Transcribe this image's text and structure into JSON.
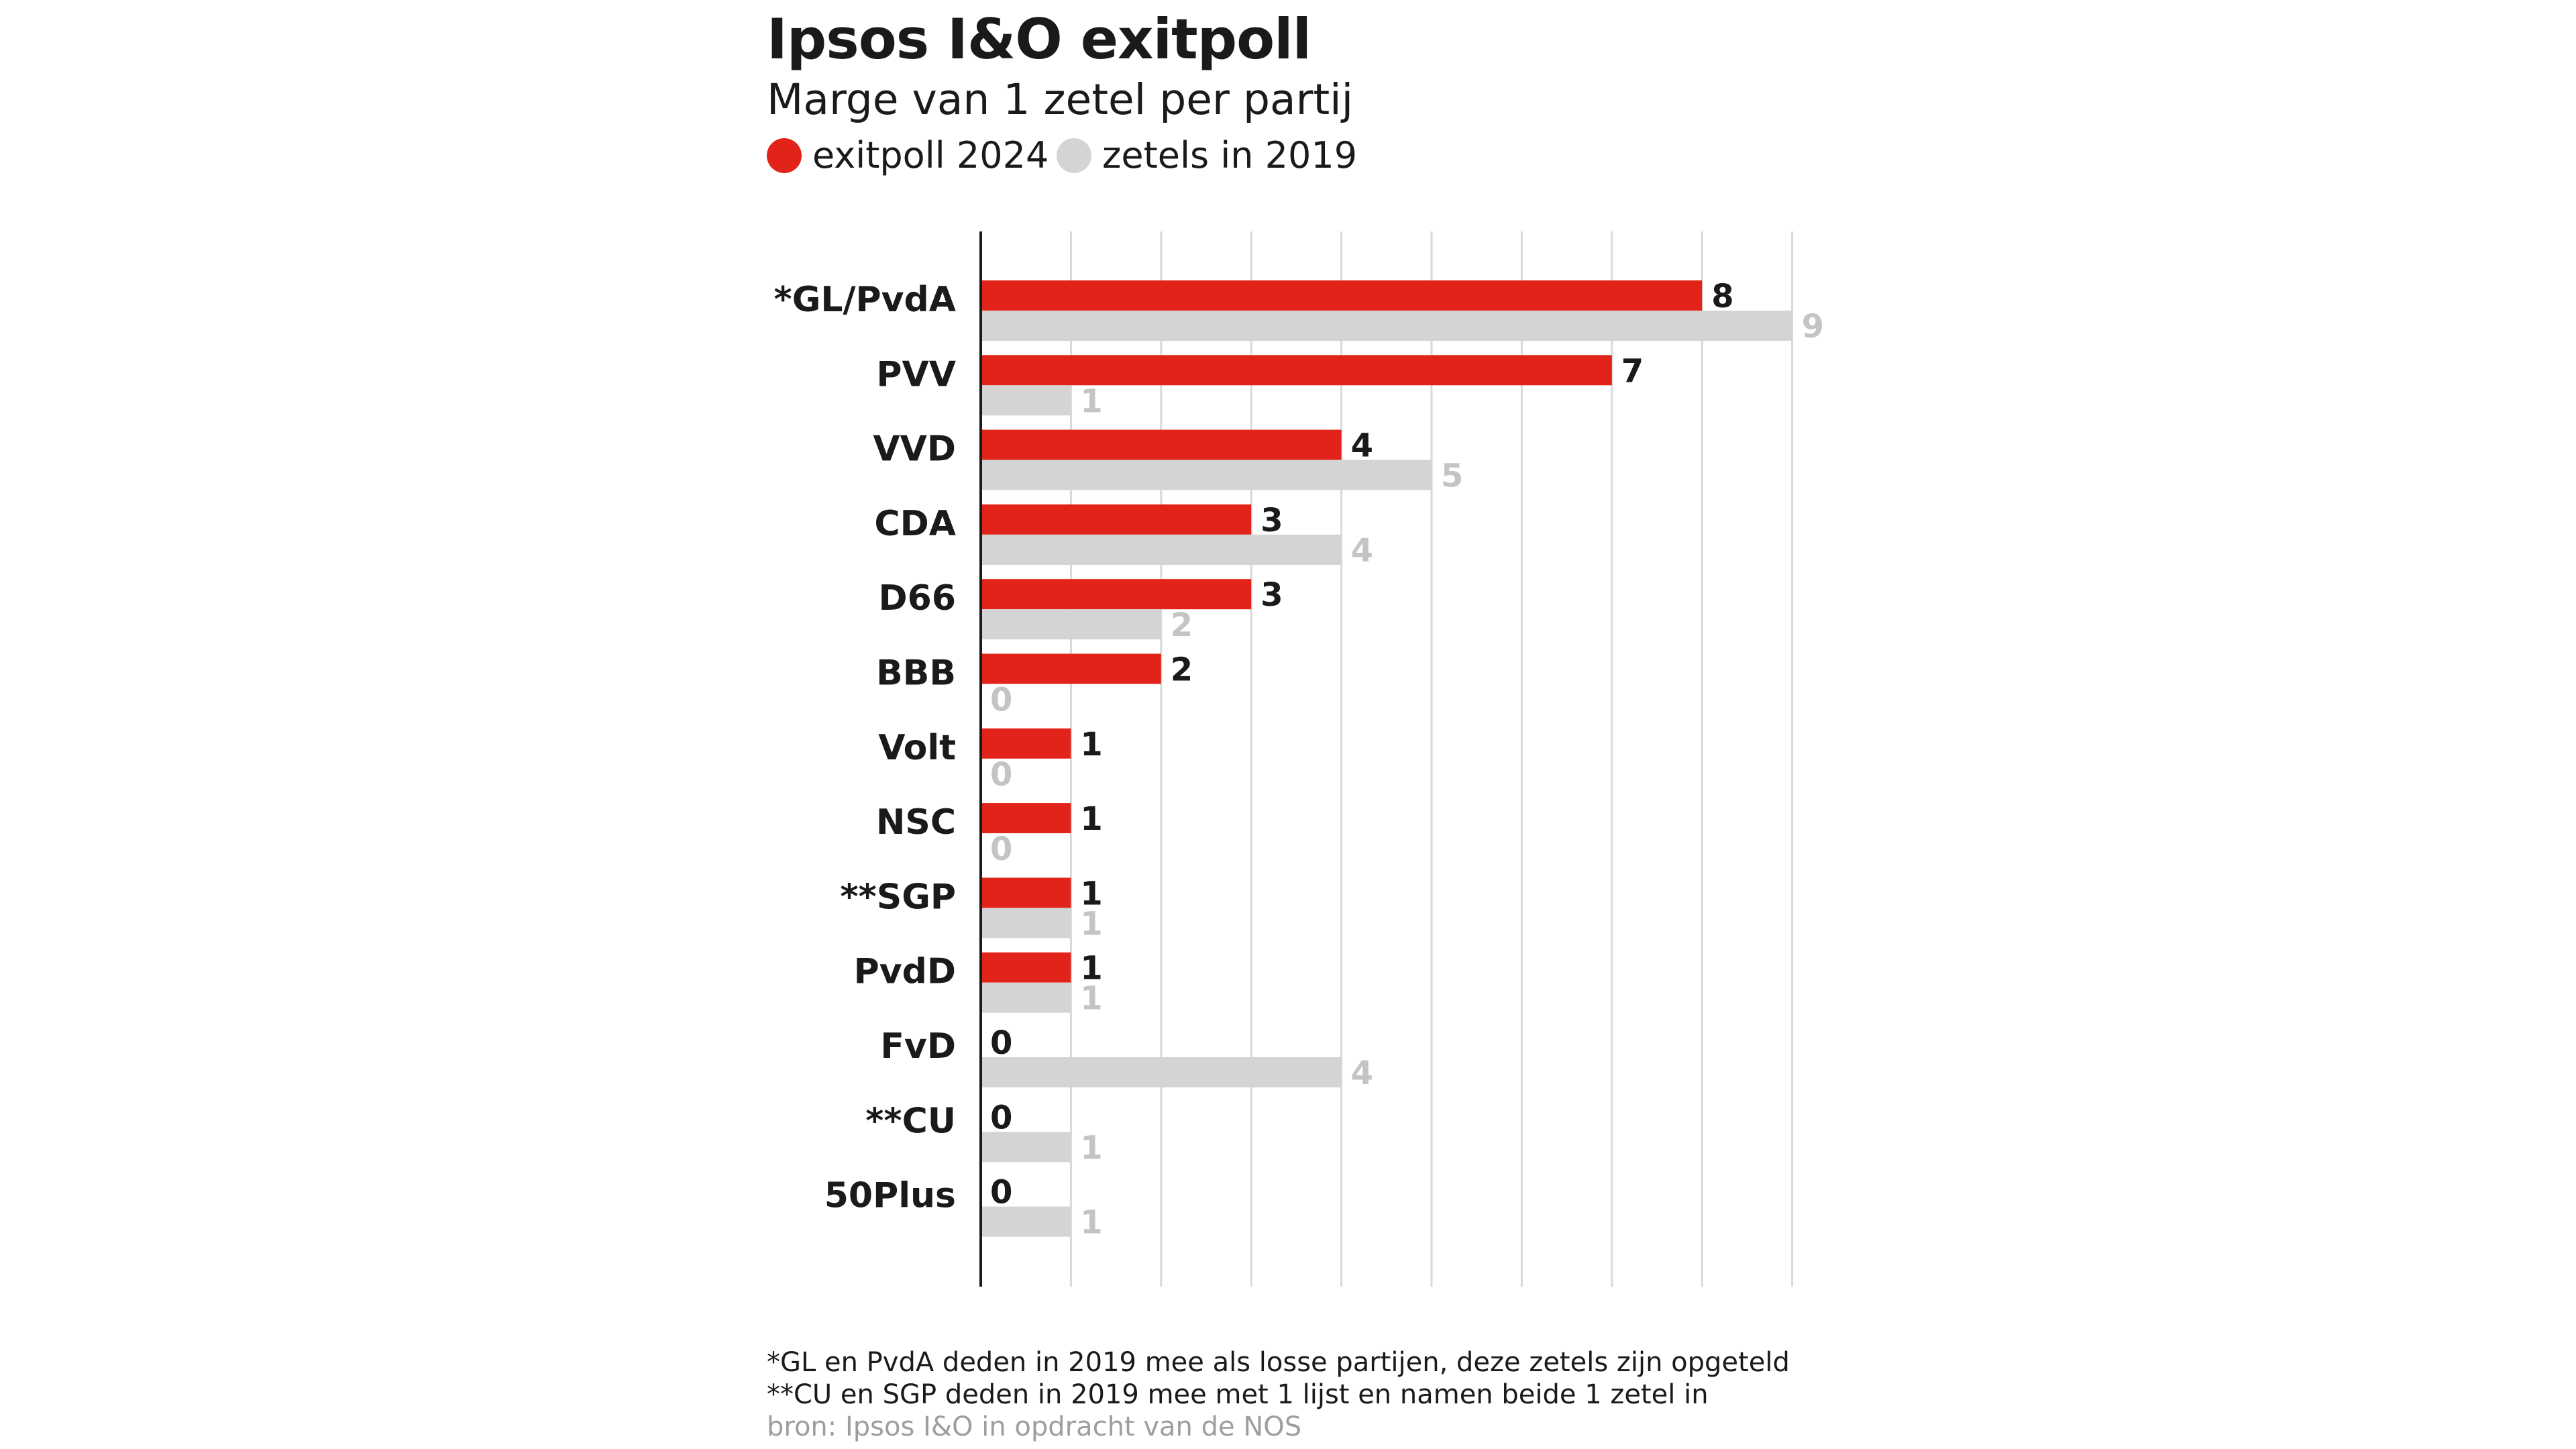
{
  "title": "Ipsos I&O exitpoll",
  "subtitle": "Marge van 1 zetel per partij",
  "colors": {
    "series_2024": "#e2231a",
    "series_2019": "#d4d4d4",
    "grid": "#d9d9d9",
    "axis": "#1a1a1a"
  },
  "legend": [
    {
      "label": "exitpoll 2024",
      "color": "#e2231a"
    },
    {
      "label": "zetels in 2019",
      "color": "#d4d4d4"
    }
  ],
  "chart_data": {
    "type": "bar",
    "orientation": "horizontal",
    "categories": [
      "*GL/PvdA",
      "PVV",
      "VVD",
      "CDA",
      "D66",
      "BBB",
      "Volt",
      "NSC",
      "**SGP",
      "PvdD",
      "FvD",
      "**CU",
      "50Plus"
    ],
    "series": [
      {
        "name": "exitpoll 2024",
        "values": [
          8,
          7,
          4,
          3,
          3,
          2,
          1,
          1,
          1,
          1,
          0,
          0,
          0
        ]
      },
      {
        "name": "zetels in 2019",
        "values": [
          9,
          1,
          5,
          4,
          2,
          0,
          0,
          0,
          1,
          1,
          4,
          1,
          1
        ]
      }
    ],
    "xlim": [
      0,
      9
    ],
    "grid": true,
    "legend_position": "top-left"
  },
  "footnotes": [
    "*GL en PvdA deden in 2019 mee als losse partijen, deze zetels zijn opgeteld",
    "**CU en SGP deden in 2019 mee met 1 lijst en namen beide 1 zetel in"
  ],
  "source": "bron: Ipsos I&O in opdracht van de NOS"
}
